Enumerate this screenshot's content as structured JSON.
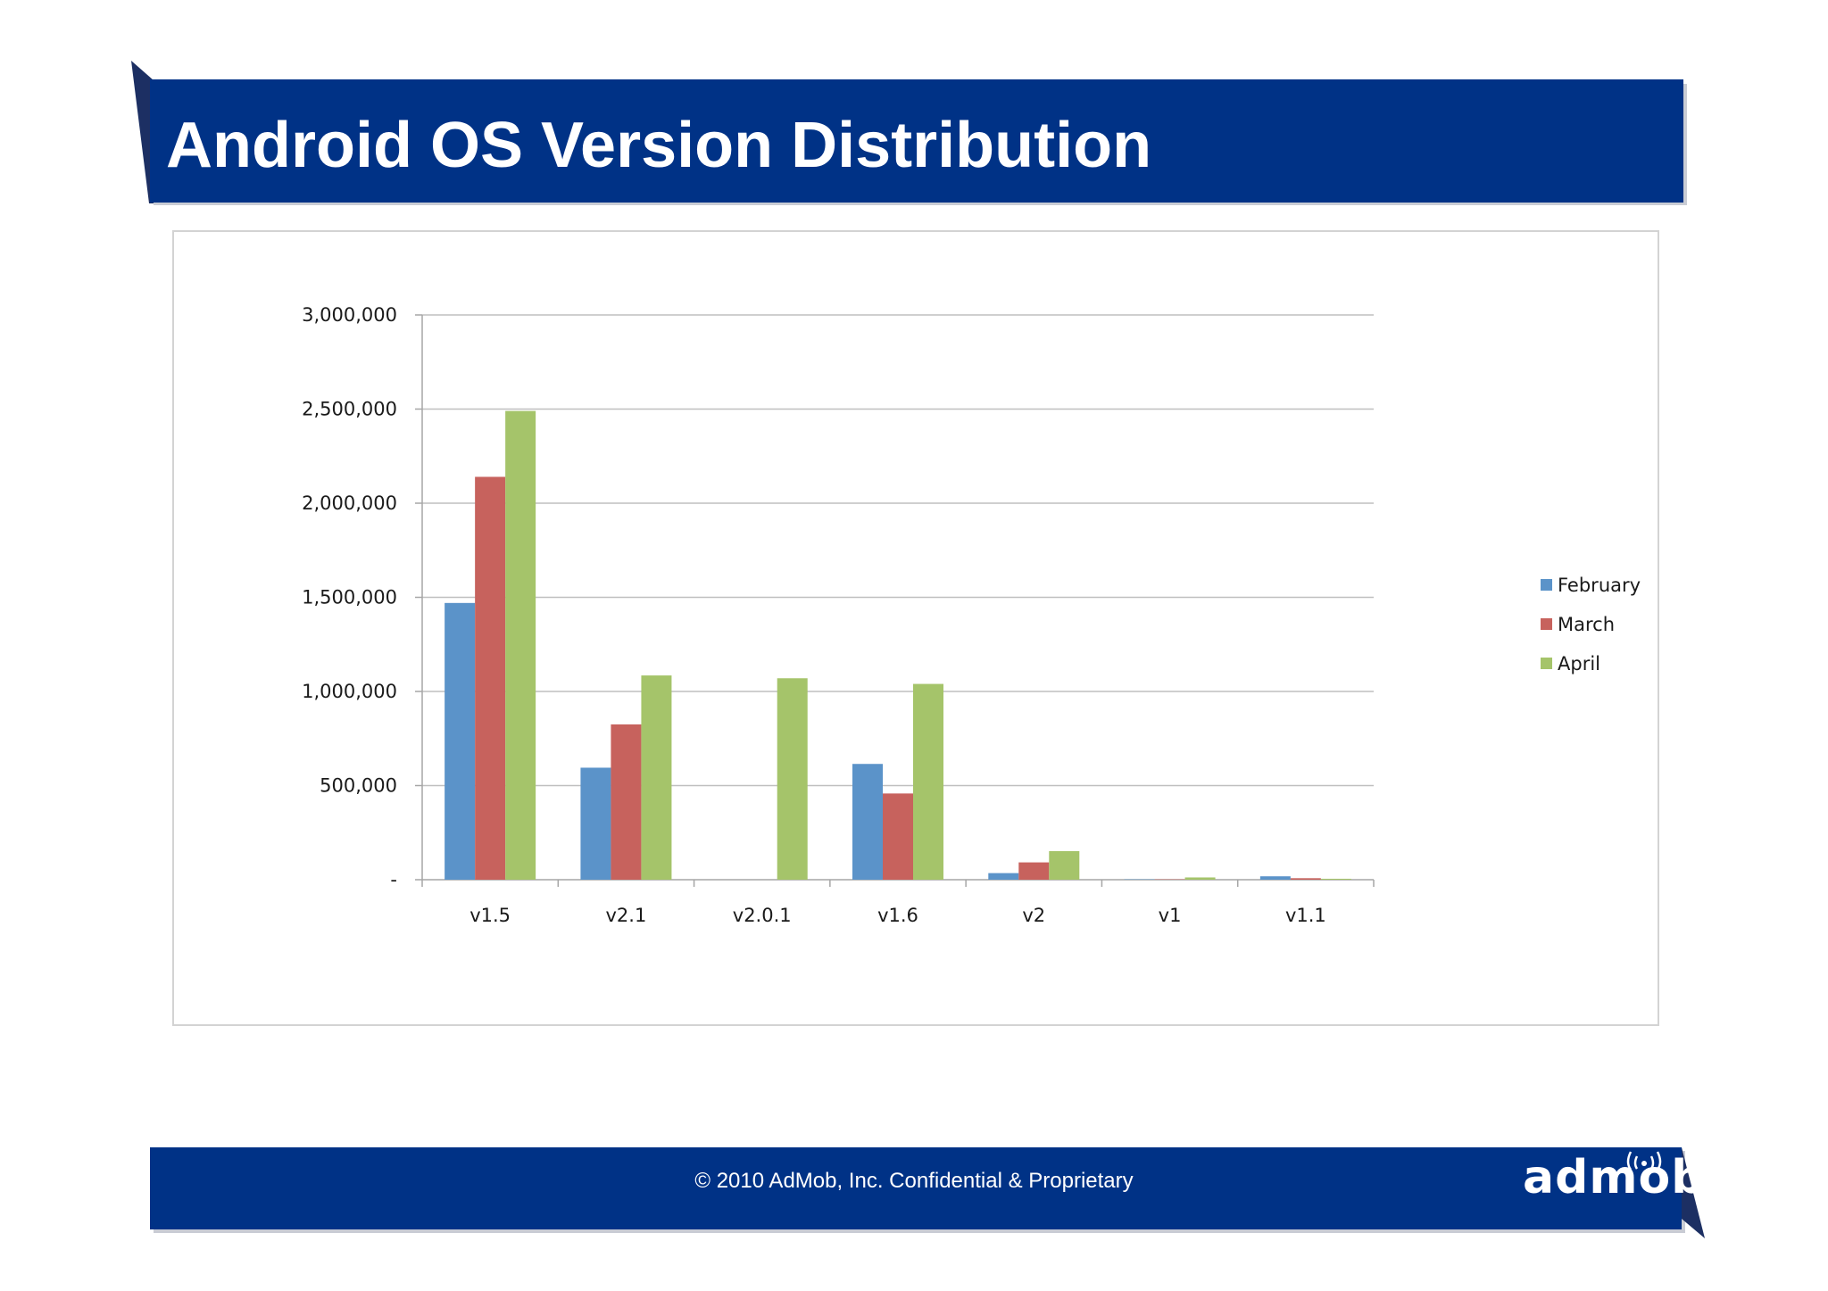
{
  "slide": {
    "title": "Android OS Version Distribution",
    "footer_text": "© 2010 AdMob, Inc. Confidential & Proprietary",
    "logo_text": "admob"
  },
  "colors": {
    "banner": "#003286",
    "banner_shadow": "#1c2f63",
    "gridline": "#bfbfbf",
    "axis": "#a6a6a6",
    "text": "#1a1a1a"
  },
  "chart_data": {
    "type": "bar",
    "categories": [
      "v1.5",
      "v2.1",
      "v2.0.1",
      "v1.6",
      "v2",
      "v1",
      "v1.1"
    ],
    "series": [
      {
        "name": "February",
        "color": "#5b93c9",
        "values": [
          1470000,
          595000,
          0,
          615000,
          35000,
          2000,
          18000
        ]
      },
      {
        "name": "March",
        "color": "#c7625d",
        "values": [
          2140000,
          825000,
          0,
          458000,
          92000,
          2000,
          8000
        ]
      },
      {
        "name": "April",
        "color": "#a5c46a",
        "values": [
          2490000,
          1085000,
          1070000,
          1040000,
          152000,
          12000,
          5000
        ]
      }
    ],
    "yticks": [
      0,
      500000,
      1000000,
      1500000,
      2000000,
      2500000,
      3000000
    ],
    "ytick_labels": [
      "-",
      "500,000",
      "1,000,000",
      "1,500,000",
      "2,000,000",
      "2,500,000",
      "3,000,000"
    ],
    "ylim": [
      0,
      3000000
    ],
    "grid": true,
    "legend_position": "right"
  }
}
